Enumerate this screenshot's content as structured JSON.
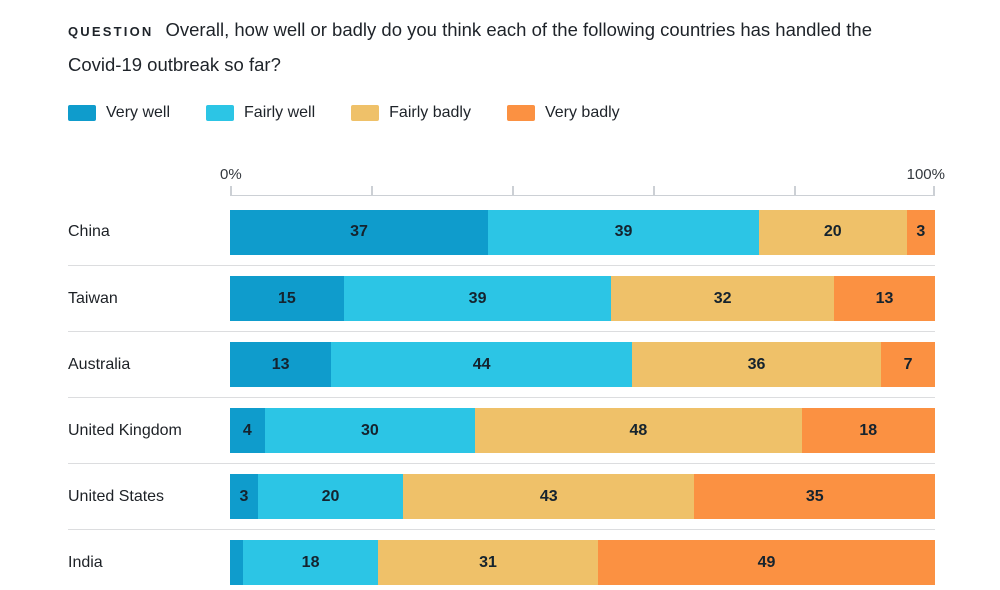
{
  "title": {
    "kicker": "QUESTION",
    "text": "Overall, how well or badly do you think each of the following countries has handled the Covid-19 outbreak so far?"
  },
  "axis": {
    "min_label": "0%",
    "max_label": "100%",
    "ticks_percent": [
      0,
      20,
      40,
      60,
      80,
      100
    ]
  },
  "chart_data": {
    "type": "bar",
    "stacked": true,
    "orientation": "horizontal",
    "legend_position": "top",
    "grid": false,
    "xlim": [
      0,
      100
    ],
    "series_names": [
      "Very well",
      "Fairly well",
      "Fairly badly",
      "Very badly"
    ],
    "series_colors": [
      "#0f9ccc",
      "#2cc5e5",
      "#efc169",
      "#fb9142"
    ],
    "rows": [
      {
        "country": "China",
        "values": [
          37,
          39,
          20,
          3
        ],
        "labels": [
          "37",
          "39",
          "20",
          "3"
        ]
      },
      {
        "country": "Taiwan",
        "values": [
          15,
          39,
          32,
          13
        ],
        "labels": [
          "15",
          "39",
          "32",
          "13"
        ]
      },
      {
        "country": "Australia",
        "values": [
          13,
          44,
          36,
          7
        ],
        "labels": [
          "13",
          "44",
          "36",
          "7"
        ]
      },
      {
        "country": "United Kingdom",
        "values": [
          4,
          30,
          48,
          18
        ],
        "labels": [
          "4",
          "30",
          "48",
          "18"
        ]
      },
      {
        "country": "United States",
        "values": [
          3,
          20,
          43,
          35
        ],
        "labels": [
          "3",
          "20",
          "43",
          "35"
        ]
      },
      {
        "country": "India",
        "values": [
          2,
          18,
          31,
          49
        ],
        "labels": [
          "",
          "18",
          "31",
          "49"
        ]
      }
    ]
  }
}
